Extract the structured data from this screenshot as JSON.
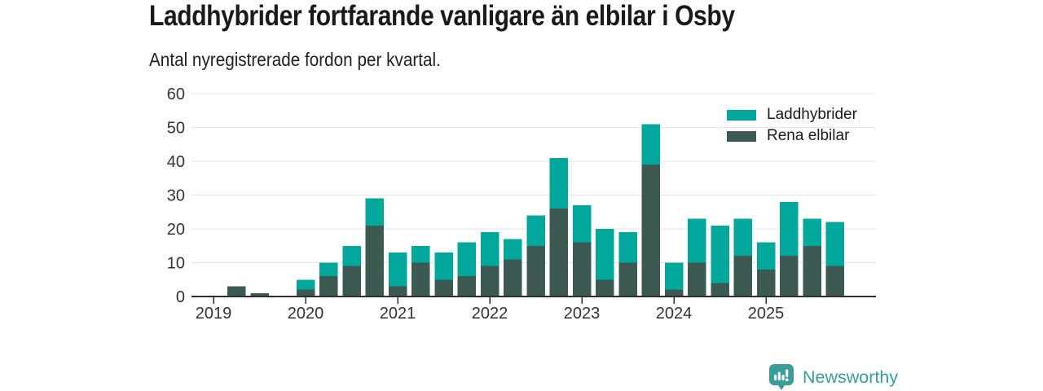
{
  "header": {
    "title": "Laddhybrider fortfarande vanligare än elbilar i Osby",
    "subtitle": "Antal nyregistrerade fordon per kvartal."
  },
  "legend": {
    "items": [
      {
        "label": "Laddhybrider",
        "color": "#00a79b"
      },
      {
        "label": "Rena elbilar",
        "color": "#3d5a52"
      }
    ]
  },
  "footer": {
    "brand": "Newsworthy",
    "logo_icon": "newsworthy-bar-chart-pin-icon",
    "brand_color": "#3a9d98"
  },
  "chart_data": {
    "type": "bar",
    "stacked": true,
    "title": "Laddhybrider fortfarande vanligare än elbilar i Osby",
    "subtitle": "Antal nyregistrerade fordon per kvartal.",
    "categories": [
      "2019 Q1",
      "2019 Q2",
      "2019 Q3",
      "2019 Q4",
      "2020 Q1",
      "2020 Q2",
      "2020 Q3",
      "2020 Q4",
      "2021 Q1",
      "2021 Q2",
      "2021 Q3",
      "2021 Q4",
      "2022 Q1",
      "2022 Q2",
      "2022 Q3",
      "2022 Q4",
      "2023 Q1",
      "2023 Q2",
      "2023 Q3",
      "2023 Q4",
      "2024 Q1",
      "2024 Q2",
      "2024 Q3",
      "2024 Q4",
      "2025 Q1",
      "2025 Q2",
      "2025 Q3",
      "2025 Q4"
    ],
    "series": [
      {
        "name": "Laddhybrider",
        "color": "#00a79b",
        "stack_position": "top",
        "values": [
          0,
          0,
          0,
          0,
          3,
          4,
          6,
          8,
          10,
          5,
          8,
          10,
          10,
          6,
          9,
          15,
          11,
          15,
          9,
          12,
          8,
          13,
          17,
          11,
          8,
          16,
          8,
          13
        ]
      },
      {
        "name": "Rena elbilar",
        "color": "#3d5a52",
        "stack_position": "bottom",
        "values": [
          0,
          3,
          1,
          0,
          2,
          6,
          9,
          21,
          3,
          10,
          5,
          6,
          9,
          11,
          15,
          26,
          16,
          5,
          10,
          39,
          2,
          10,
          4,
          12,
          8,
          12,
          15,
          9
        ]
      }
    ],
    "totals": [
      0,
      3,
      1,
      0,
      5,
      10,
      15,
      29,
      13,
      15,
      13,
      16,
      19,
      17,
      24,
      41,
      27,
      20,
      19,
      51,
      10,
      23,
      21,
      23,
      16,
      28,
      23,
      22
    ],
    "ylim": [
      0,
      60
    ],
    "yticks": [
      0,
      10,
      20,
      30,
      40,
      50,
      60
    ],
    "xtick_labels": [
      "2019",
      "2020",
      "2021",
      "2022",
      "2023",
      "2024",
      "2025"
    ],
    "xtick_every_n_bars": 4,
    "grid": true,
    "legend_position": "top-right",
    "grid_color": "#e4e4e4",
    "axis_color": "#2f2f2f",
    "tick_label_color": "#333333"
  }
}
